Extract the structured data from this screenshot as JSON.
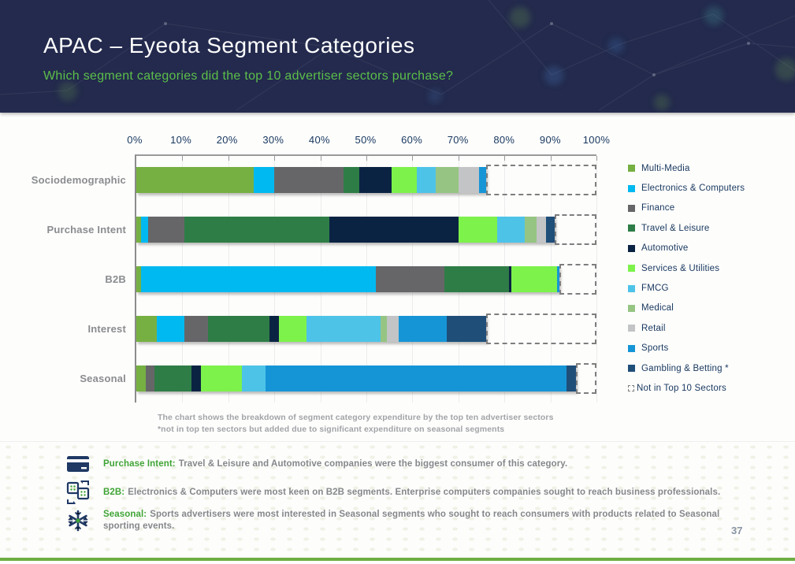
{
  "header": {
    "title": "APAC – Eyeota Segment Categories",
    "subtitle": "Which segment categories did the top 10 advertiser sectors purchase?"
  },
  "chart_data": {
    "type": "bar",
    "variant": "horizontal-stacked",
    "xlim": [
      0,
      100
    ],
    "x_ticks": [
      "0%",
      "10%",
      "20%",
      "30%",
      "40%",
      "50%",
      "60%",
      "70%",
      "80%",
      "90%",
      "100%"
    ],
    "legend_position": "right",
    "grid": true,
    "sectors": [
      {
        "id": "multi_media",
        "label": "Multi-Media",
        "color": "#76b043"
      },
      {
        "id": "electronics",
        "label": "Electronics & Computers",
        "color": "#00b9f0"
      },
      {
        "id": "finance",
        "label": "Finance",
        "color": "#666669"
      },
      {
        "id": "travel",
        "label": "Travel & Leisure",
        "color": "#2e7d46"
      },
      {
        "id": "automotive",
        "label": "Automotive",
        "color": "#0b2343"
      },
      {
        "id": "services",
        "label": "Services & Utilities",
        "color": "#7df24b"
      },
      {
        "id": "fmcg",
        "label": "FMCG",
        "color": "#4ec3e8"
      },
      {
        "id": "medical",
        "label": "Medical",
        "color": "#96c583"
      },
      {
        "id": "retail",
        "label": "Retail",
        "color": "#c2c4c6"
      },
      {
        "id": "sports",
        "label": "Sports",
        "color": "#1695d6"
      },
      {
        "id": "gambling",
        "label": "Gambling & Betting *",
        "color": "#1f4e79"
      },
      {
        "id": "not_top10",
        "label": "Not in Top 10 Sectors",
        "style": "dashed"
      }
    ],
    "categories": [
      "Sociodemographic",
      "Purchase Intent",
      "B2B",
      "Interest",
      "Seasonal"
    ],
    "rows": [
      {
        "category": "Sociodemographic",
        "segments": [
          [
            "multi_media",
            25.5
          ],
          [
            "electronics",
            4.5
          ],
          [
            "finance",
            15
          ],
          [
            "travel",
            3.5
          ],
          [
            "automotive",
            7
          ],
          [
            "services",
            5.5
          ],
          [
            "fmcg",
            4
          ],
          [
            "medical",
            5
          ],
          [
            "retail",
            4.5
          ],
          [
            "sports",
            1.5
          ]
        ],
        "not_in_top_10": 24
      },
      {
        "category": "Purchase Intent",
        "segments": [
          [
            "multi_media",
            1
          ],
          [
            "electronics",
            1.5
          ],
          [
            "finance",
            8
          ],
          [
            "travel",
            31.5
          ],
          [
            "automotive",
            28
          ],
          [
            "services",
            8.5
          ],
          [
            "fmcg",
            6
          ],
          [
            "medical",
            2.5
          ],
          [
            "retail",
            2
          ],
          [
            "gambling",
            2
          ]
        ],
        "not_in_top_10": 9
      },
      {
        "category": "B2B",
        "segments": [
          [
            "multi_media",
            1
          ],
          [
            "electronics",
            51
          ],
          [
            "finance",
            15
          ],
          [
            "travel",
            14
          ],
          [
            "automotive",
            0.5
          ],
          [
            "services",
            10
          ],
          [
            "sports",
            0.5
          ]
        ],
        "not_in_top_10": 8
      },
      {
        "category": "Interest",
        "segments": [
          [
            "multi_media",
            4.5
          ],
          [
            "electronics",
            6
          ],
          [
            "finance",
            5
          ],
          [
            "travel",
            13.5
          ],
          [
            "automotive",
            2
          ],
          [
            "services",
            6
          ],
          [
            "fmcg",
            16
          ],
          [
            "medical",
            1.5
          ],
          [
            "retail",
            2.5
          ],
          [
            "sports",
            10.5
          ],
          [
            "gambling",
            8.5
          ]
        ],
        "not_in_top_10": 24
      },
      {
        "category": "Seasonal",
        "segments": [
          [
            "multi_media",
            2
          ],
          [
            "finance",
            2
          ],
          [
            "travel",
            8
          ],
          [
            "automotive",
            2
          ],
          [
            "services",
            9
          ],
          [
            "fmcg",
            5
          ],
          [
            "sports",
            65.5
          ],
          [
            "gambling",
            2
          ]
        ],
        "not_in_top_10": 4.5
      }
    ],
    "caption_line1": "The chart shows the breakdown of segment category expenditure by the top ten advertiser sectors",
    "caption_line2": "*not in top ten sectors but added due to significant expenditure on seasonal segments"
  },
  "callouts": [
    {
      "icon": "credit-card-icon",
      "label": "Purchase Intent:",
      "text": "Travel & Leisure and Automotive companies were the biggest consumer of this category."
    },
    {
      "icon": "b2b-transfer-icon",
      "label": "B2B:",
      "text": "Electronics & Computers were most keen on B2B segments. Enterprise computers companies sought to reach business professionals."
    },
    {
      "icon": "snowflake-icon",
      "label": "Seasonal:",
      "text": "Sports advertisers were most interested in Seasonal segments who sought to reach consumers with products related to Seasonal sporting events."
    }
  ],
  "page_number": "37",
  "colors": {
    "header_bg": "#232a4d",
    "subtitle_green": "#5cbf4a",
    "callout_green": "#3fa435",
    "axis_text": "#17375e",
    "category_label": "#8a8c8f",
    "caption_gray": "#a2a4a7",
    "dash_border": "#7e7e7e",
    "bottom_bar_green": "#6fae43",
    "page_number": "#8b95a5"
  }
}
